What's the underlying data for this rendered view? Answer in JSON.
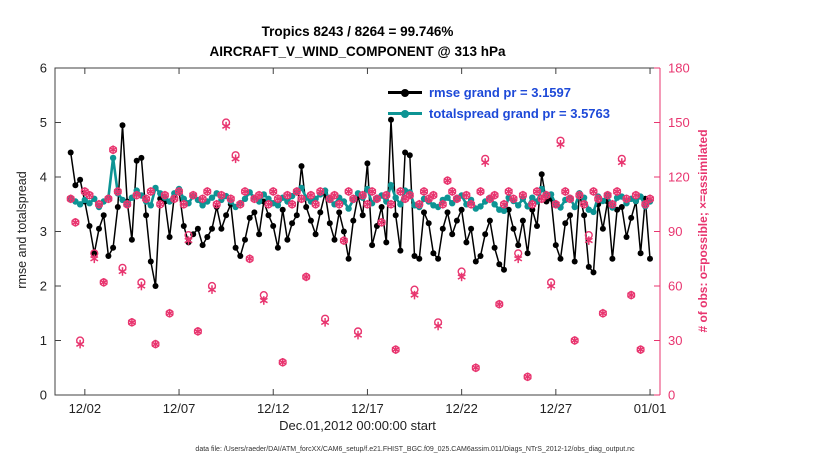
{
  "title": {
    "line1": "Tropics 8243 / 8264 = 99.746%",
    "line2": "AIRCRAFT_V_WIND_COMPONENT @ 313 hPa"
  },
  "axes": {
    "ylabel_left": "rmse and totalspread",
    "ylabel_right": "# of obs: o=possible; ×=assimilated",
    "xlabel": "Dec.01,2012 00:00:00 start"
  },
  "legend": [
    {
      "label": "rmse grand pr = 3.1597"
    },
    {
      "label": "totalspread grand pr = 3.5763"
    }
  ],
  "caption": "data file: /Users/raeder/DAI/ATM_forcXX/CAM6_setup/f.e21.FHIST_BGC.f09_025.CAM6assim.011/Diags_NTrS_2012-12/obs_diag_output.nc",
  "colors": {
    "rmse": "#000000",
    "totalspread": "#0d9494",
    "obs": "#e8356f",
    "legend_text": "#1d49d8",
    "axis": "#404040"
  },
  "chart_data": {
    "type": "line",
    "title": "Tropics 8243 / 8264 = 99.746% | AIRCRAFT_V_WIND_COMPONENT @ 313 hPa",
    "xlabel": "Dec.01,2012 00:00:00 start",
    "ylabel_left": "rmse and totalspread",
    "ylabel_right": "# of obs: o=possible; ×=assimilated",
    "x_days_start": 0.25,
    "x_days_step": 0.25,
    "x_units": "days since Dec 01 2012 00:00",
    "xticks": [
      {
        "label": "12/02",
        "day": 1
      },
      {
        "label": "12/07",
        "day": 6
      },
      {
        "label": "12/12",
        "day": 11
      },
      {
        "label": "12/17",
        "day": 16
      },
      {
        "label": "12/22",
        "day": 21
      },
      {
        "label": "12/27",
        "day": 26
      },
      {
        "label": "01/01",
        "day": 31
      }
    ],
    "ylim_left": [
      0,
      6
    ],
    "yticks_left": [
      0,
      1,
      2,
      3,
      4,
      5,
      6
    ],
    "ylim_right": [
      0,
      180
    ],
    "yticks_right": [
      0,
      30,
      60,
      90,
      120,
      150,
      180
    ],
    "grand_pr": {
      "rmse": 3.1597,
      "totalspread": 3.5763
    },
    "series": [
      {
        "name": "rmse",
        "axis": "left",
        "color": "#000000",
        "marker": "circle-filled",
        "values": [
          4.45,
          3.85,
          3.95,
          3.55,
          3.1,
          2.6,
          3.05,
          3.3,
          2.55,
          2.7,
          3.45,
          4.95,
          3.55,
          2.85,
          4.3,
          4.35,
          3.3,
          2.45,
          2.0,
          3.6,
          3.55,
          2.9,
          3.65,
          3.75,
          3.1,
          2.8,
          2.95,
          3.05,
          2.75,
          2.9,
          3.05,
          3.45,
          3.05,
          3.3,
          3.5,
          2.7,
          2.55,
          2.85,
          3.25,
          3.35,
          2.95,
          3.55,
          3.3,
          3.1,
          2.7,
          3.4,
          2.85,
          3.15,
          3.3,
          4.2,
          3.45,
          3.2,
          2.95,
          3.35,
          3.7,
          3.15,
          2.85,
          3.35,
          3.0,
          2.5,
          3.2,
          3.65,
          3.3,
          4.25,
          2.75,
          3.1,
          3.45,
          2.8,
          5.05,
          3.3,
          2.65,
          4.45,
          4.4,
          2.55,
          2.5,
          3.35,
          3.15,
          2.6,
          2.5,
          3.05,
          3.35,
          2.95,
          3.2,
          3.4,
          2.8,
          3.05,
          2.45,
          2.55,
          2.95,
          3.2,
          2.7,
          2.4,
          2.3,
          3.4,
          3.05,
          2.75,
          3.2,
          2.6,
          3.4,
          3.1,
          4.05,
          3.55,
          3.6,
          2.75,
          2.5,
          3.15,
          3.3,
          2.45,
          3.7,
          3.3,
          2.35,
          2.25,
          3.5,
          3.05,
          3.55,
          2.5,
          3.4,
          3.45,
          2.9,
          3.25,
          3.55,
          2.6,
          3.6,
          2.5
        ]
      },
      {
        "name": "totalspread",
        "axis": "left",
        "color": "#0d9494",
        "marker": "circle-filled",
        "values": [
          3.6,
          3.55,
          3.5,
          3.58,
          3.52,
          3.6,
          3.45,
          3.55,
          3.62,
          4.35,
          3.7,
          3.58,
          3.5,
          3.62,
          3.75,
          3.66,
          3.55,
          3.48,
          3.8,
          3.7,
          3.62,
          3.55,
          3.7,
          3.78,
          3.6,
          3.52,
          3.65,
          3.58,
          3.48,
          3.55,
          3.62,
          3.7,
          3.58,
          3.65,
          3.55,
          3.45,
          3.52,
          3.6,
          3.72,
          3.62,
          3.55,
          3.68,
          3.6,
          3.52,
          3.48,
          3.62,
          3.55,
          3.65,
          3.72,
          3.8,
          3.62,
          3.55,
          3.6,
          3.68,
          3.75,
          3.58,
          3.5,
          3.62,
          3.55,
          3.42,
          3.58,
          3.7,
          3.62,
          3.78,
          3.52,
          3.6,
          3.66,
          3.55,
          3.85,
          3.62,
          3.5,
          3.75,
          3.72,
          3.48,
          3.45,
          3.6,
          3.55,
          3.48,
          3.45,
          3.58,
          3.62,
          3.52,
          3.6,
          3.66,
          3.5,
          3.58,
          3.42,
          3.46,
          3.55,
          3.62,
          3.5,
          3.4,
          3.38,
          3.62,
          3.56,
          3.48,
          3.6,
          3.46,
          3.62,
          3.55,
          3.78,
          3.66,
          3.68,
          3.5,
          3.44,
          3.58,
          3.62,
          3.45,
          3.7,
          3.62,
          3.4,
          3.36,
          3.64,
          3.56,
          3.66,
          3.44,
          3.62,
          3.64,
          3.52,
          3.6,
          3.56,
          3.64,
          3.46,
          3.55
        ]
      },
      {
        "name": "possible",
        "axis": "right",
        "color": "#e8356f",
        "marker": "o",
        "values": [
          108,
          95,
          30,
          112,
          110,
          78,
          105,
          62,
          108,
          135,
          112,
          70,
          105,
          40,
          110,
          62,
          108,
          112,
          28,
          105,
          110,
          45,
          108,
          112,
          105,
          88,
          110,
          35,
          108,
          112,
          60,
          105,
          110,
          150,
          108,
          132,
          105,
          112,
          75,
          108,
          110,
          55,
          105,
          112,
          108,
          18,
          110,
          105,
          112,
          108,
          65,
          110,
          105,
          112,
          42,
          108,
          110,
          105,
          85,
          112,
          108,
          35,
          110,
          105,
          112,
          108,
          95,
          110,
          105,
          25,
          112,
          108,
          110,
          58,
          105,
          112,
          108,
          110,
          40,
          105,
          118,
          112,
          108,
          68,
          110,
          105,
          15,
          112,
          130,
          108,
          110,
          50,
          105,
          112,
          108,
          78,
          110,
          10,
          105,
          112,
          108,
          110,
          62,
          105,
          140,
          112,
          108,
          30,
          110,
          105,
          88,
          112,
          108,
          45,
          110,
          105,
          112,
          130,
          108,
          55,
          110,
          25,
          105,
          108
        ]
      },
      {
        "name": "assimilated",
        "axis": "right",
        "color": "#e8356f",
        "marker": "asterisk",
        "values": [
          108,
          95,
          28,
          112,
          110,
          75,
          105,
          62,
          108,
          135,
          112,
          68,
          105,
          40,
          110,
          60,
          108,
          112,
          28,
          105,
          110,
          45,
          108,
          112,
          105,
          85,
          110,
          35,
          108,
          112,
          58,
          105,
          110,
          148,
          108,
          130,
          105,
          112,
          75,
          108,
          110,
          52,
          105,
          112,
          108,
          18,
          110,
          105,
          112,
          108,
          65,
          110,
          105,
          112,
          40,
          108,
          110,
          105,
          85,
          112,
          108,
          33,
          110,
          105,
          112,
          108,
          95,
          110,
          105,
          25,
          112,
          108,
          110,
          55,
          105,
          112,
          108,
          110,
          38,
          105,
          118,
          112,
          108,
          65,
          110,
          105,
          15,
          112,
          128,
          108,
          110,
          50,
          105,
          112,
          108,
          75,
          110,
          10,
          105,
          112,
          108,
          110,
          60,
          105,
          138,
          112,
          108,
          30,
          110,
          105,
          85,
          112,
          108,
          45,
          110,
          105,
          112,
          128,
          108,
          55,
          110,
          25,
          105,
          108
        ]
      }
    ]
  }
}
